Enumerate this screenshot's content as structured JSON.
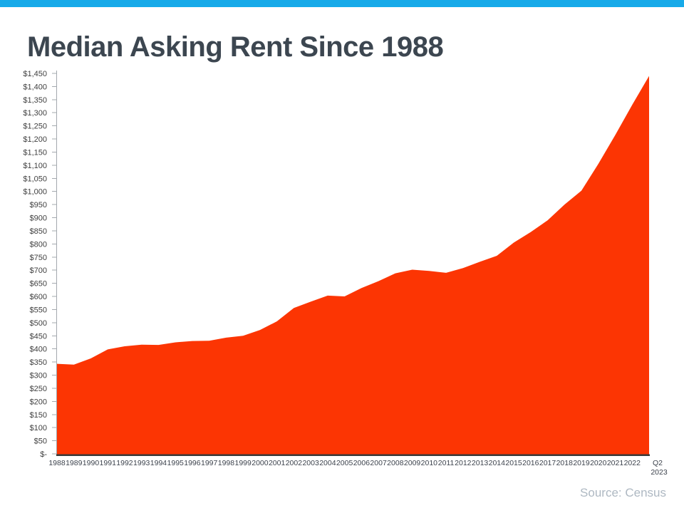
{
  "page": {
    "top_bar_color": "#17aae9",
    "background_color": "#ffffff"
  },
  "header": {
    "title": "Median Asking Rent Since 1988",
    "title_color": "#3c4650"
  },
  "source": {
    "label": "Source: Census",
    "color": "#aeb8c2"
  },
  "chart_data": {
    "type": "area",
    "title": "Median Asking Rent Since 1988",
    "series_name": "Median Asking Rent",
    "categories": [
      "1988",
      "1989",
      "1990",
      "1991",
      "1992",
      "1993",
      "1994",
      "1995",
      "1996",
      "1997",
      "1998",
      "1999",
      "2000",
      "2001",
      "2002",
      "2003",
      "2004",
      "2005",
      "2006",
      "2007",
      "2008",
      "2009",
      "2010",
      "2011",
      "2012",
      "2013",
      "2014",
      "2015",
      "2016",
      "2017",
      "2018",
      "2019",
      "2020",
      "2021",
      "2022",
      "Q2 2023"
    ],
    "values": [
      343,
      340,
      364,
      398,
      410,
      416,
      415,
      425,
      430,
      431,
      443,
      450,
      472,
      505,
      556,
      580,
      603,
      600,
      632,
      658,
      688,
      702,
      697,
      690,
      708,
      732,
      755,
      805,
      845,
      890,
      950,
      1003,
      1105,
      1215,
      1330,
      1440
    ],
    "ylim": [
      0,
      1450
    ],
    "y_tick_step": 50,
    "y_tick_labels": [
      "$1,450",
      "$1,400",
      "$1,350",
      "$1,300",
      "$1,250",
      "$1,200",
      "$1,150",
      "$1,100",
      "$1,050",
      "$1,000",
      "$950",
      "$900",
      "$850",
      "$800",
      "$750",
      "$700",
      "$650",
      "$600",
      "$550",
      "$500",
      "$450",
      "$400",
      "$350",
      "$300",
      "$250",
      "$200",
      "$150",
      "$100",
      "$50",
      "$-"
    ],
    "area_color": "#fc3503",
    "axis_line_color": "#a3a8ae",
    "baseline_color": "#3a3a3a",
    "tick_label_color": "#404040",
    "x_label_color": "#3d434d",
    "gridlines": false,
    "legend": "none",
    "source": "Source: Census"
  }
}
